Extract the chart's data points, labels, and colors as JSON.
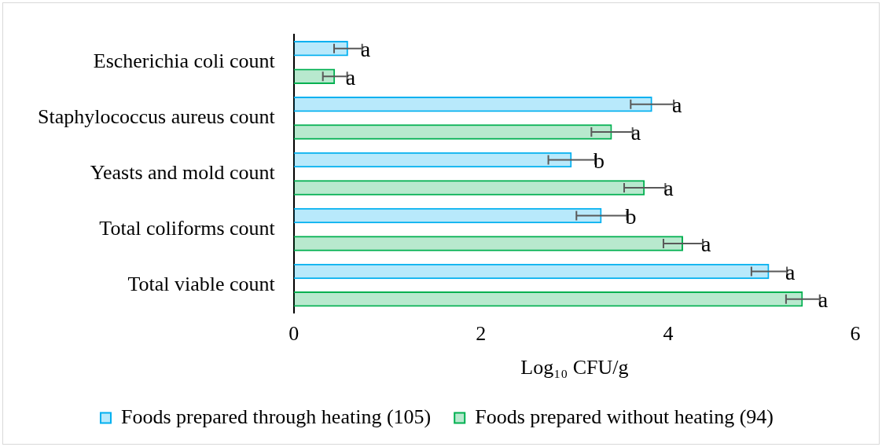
{
  "chart_data": {
    "type": "bar",
    "orientation": "horizontal",
    "xlabel": "Log₁₀ CFU/g",
    "categories": [
      "Escherichia coli count",
      "Staphylococcus aureus count",
      "Yeasts and mold count",
      "Total coliforms count",
      "Total viable count"
    ],
    "series": [
      {
        "name": "Foods prepared through heating (105)",
        "color": "#00b0f0",
        "values": [
          0.58,
          3.83,
          2.97,
          3.29,
          5.08
        ],
        "errors": [
          0.15,
          0.23,
          0.25,
          0.27,
          0.19
        ],
        "value_labels": [
          "a",
          "a",
          "b",
          "b",
          "a"
        ]
      },
      {
        "name": "Foods prepared without heating (94)",
        "color": "#00b050",
        "values": [
          0.44,
          3.4,
          3.75,
          4.16,
          5.44
        ],
        "errors": [
          0.13,
          0.22,
          0.22,
          0.21,
          0.18
        ],
        "value_labels": [
          "a",
          "a",
          "a",
          "a",
          "a"
        ]
      }
    ],
    "xlim": [
      0,
      6
    ],
    "xticks": [
      0,
      2,
      4,
      6
    ],
    "grid": false,
    "legend": "bottom"
  }
}
